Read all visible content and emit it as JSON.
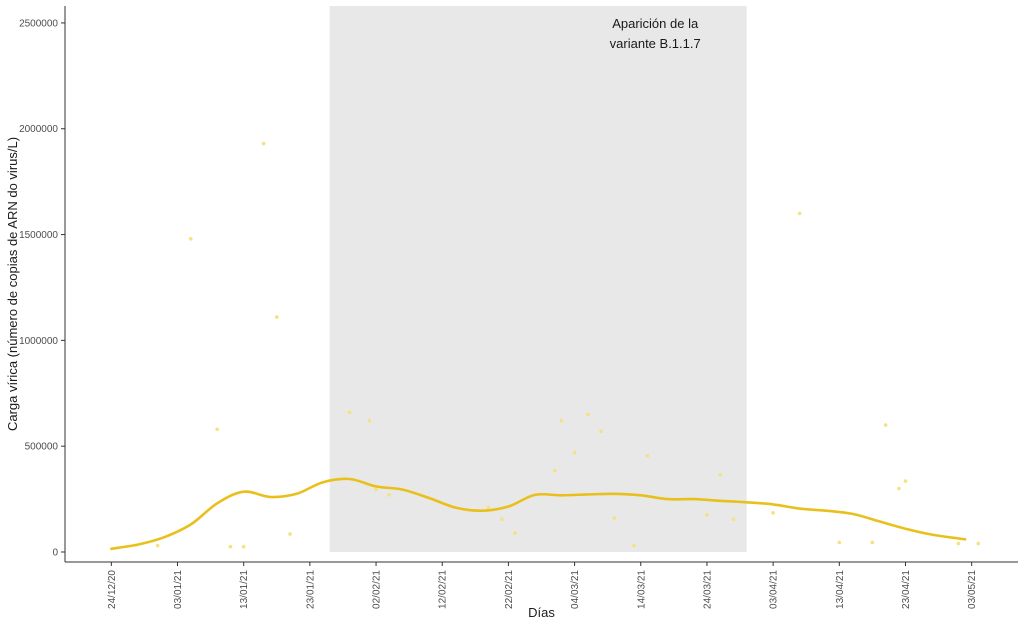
{
  "chart_data": {
    "type": "scatter",
    "xlabel": "Días",
    "ylabel": "Carga vírica (número de copias de ARN do virus/L)",
    "ylim": [
      0,
      2580000
    ],
    "yticks": [
      0,
      500000,
      1000000,
      1500000,
      2000000,
      2500000
    ],
    "ytick_labels": [
      "0",
      "500000",
      "1000000",
      "1500000",
      "2000000",
      "2500000"
    ],
    "xlim": [
      "2020-12-17",
      "2021-05-10"
    ],
    "xticks": [
      "2020-12-24",
      "2021-01-03",
      "2021-01-13",
      "2021-01-23",
      "2021-02-02",
      "2021-02-12",
      "2021-02-22",
      "2021-03-04",
      "2021-03-14",
      "2021-03-24",
      "2021-04-03",
      "2021-04-13",
      "2021-04-23",
      "2021-05-03"
    ],
    "xtick_labels": [
      "24/12/20",
      "03/01/21",
      "13/01/21",
      "23/01/21",
      "02/02/21",
      "12/02/21",
      "22/02/21",
      "04/03/21",
      "14/03/21",
      "24/03/21",
      "03/04/21",
      "13/04/21",
      "23/04/21",
      "03/05/21"
    ],
    "grid": false,
    "shaded_region": {
      "x_start": "2021-01-26",
      "x_end": "2021-03-30",
      "label_line1": "Aparición de la",
      "label_line2": "variante B.1.1.7",
      "color": "#e8e8e8"
    },
    "points": {
      "color": "#f3e27f",
      "x": [
        "2020-12-31",
        "2021-01-05",
        "2021-01-09",
        "2021-01-11",
        "2021-01-13",
        "2021-01-16",
        "2021-01-18",
        "2021-01-20",
        "2021-01-29",
        "2021-02-01",
        "2021-02-02",
        "2021-02-04",
        "2021-02-19",
        "2021-02-21",
        "2021-02-23",
        "2021-02-29",
        "2021-03-02",
        "2021-03-04",
        "2021-03-06",
        "2021-03-08",
        "2021-03-10",
        "2021-03-13",
        "2021-03-15",
        "2021-03-24",
        "2021-03-26",
        "2021-03-28",
        "2021-04-03",
        "2021-04-07",
        "2021-04-13",
        "2021-04-18",
        "2021-04-20",
        "2021-04-22",
        "2021-04-23",
        "2021-05-01",
        "2021-05-04"
      ],
      "y": [
        30000,
        1480000,
        580000,
        25000,
        25000,
        1930000,
        1110000,
        85000,
        660000,
        620000,
        295000,
        270000,
        210000,
        155000,
        90000,
        385000,
        620000,
        470000,
        650000,
        570000,
        160000,
        30000,
        455000,
        175000,
        365000,
        155000,
        185000,
        1600000,
        45000,
        45000,
        600000,
        300000,
        335000,
        40000,
        40000
      ]
    },
    "trend": {
      "color": "#e9c01b",
      "x": [
        "2020-12-24",
        "2020-12-28",
        "2021-01-01",
        "2021-01-05",
        "2021-01-09",
        "2021-01-13",
        "2021-01-17",
        "2021-01-21",
        "2021-01-25",
        "2021-01-29",
        "2021-02-02",
        "2021-02-06",
        "2021-02-10",
        "2021-02-14",
        "2021-02-18",
        "2021-02-22",
        "2021-02-26",
        "2021-03-02",
        "2021-03-06",
        "2021-03-10",
        "2021-03-14",
        "2021-03-18",
        "2021-03-22",
        "2021-03-26",
        "2021-03-30",
        "2021-04-03",
        "2021-04-07",
        "2021-04-11",
        "2021-04-15",
        "2021-04-19",
        "2021-04-23",
        "2021-04-27",
        "2021-05-02"
      ],
      "y": [
        15000,
        35000,
        70000,
        130000,
        230000,
        285000,
        260000,
        275000,
        330000,
        345000,
        310000,
        295000,
        255000,
        210000,
        195000,
        215000,
        270000,
        268000,
        272000,
        275000,
        268000,
        250000,
        250000,
        242000,
        235000,
        225000,
        205000,
        195000,
        180000,
        145000,
        110000,
        82000,
        60000
      ]
    }
  }
}
